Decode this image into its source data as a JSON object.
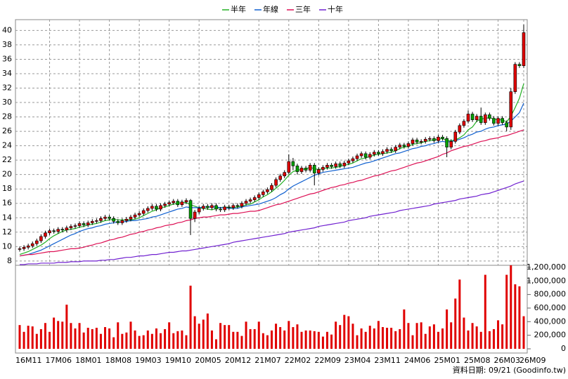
{
  "chart_data": {
    "type": "candlestick",
    "categories": [
      "16M11",
      null,
      null,
      null,
      null,
      null,
      null,
      "17M06",
      null,
      null,
      null,
      null,
      null,
      null,
      "18M01",
      null,
      null,
      null,
      null,
      null,
      null,
      "18M08",
      null,
      null,
      null,
      null,
      null,
      null,
      "19M03",
      null,
      null,
      null,
      null,
      null,
      null,
      "19M10",
      null,
      null,
      null,
      null,
      null,
      null,
      "20M05",
      null,
      null,
      null,
      null,
      null,
      null,
      "20M12",
      null,
      null,
      null,
      null,
      null,
      null,
      "21M07",
      null,
      null,
      null,
      null,
      null,
      null,
      "22M02",
      null,
      null,
      null,
      null,
      null,
      null,
      "22M09",
      null,
      null,
      null,
      null,
      null,
      null,
      "23M04",
      null,
      null,
      null,
      null,
      null,
      null,
      "23M11",
      null,
      null,
      null,
      null,
      null,
      null,
      "24M06",
      null,
      null,
      null,
      null,
      null,
      null,
      "25M01",
      null,
      null,
      null,
      null,
      null,
      null,
      "25M08",
      null,
      null,
      null,
      null,
      null,
      null,
      "26M03",
      null,
      null,
      null,
      null,
      null,
      "26M09"
    ],
    "open": [
      9.6,
      9.7,
      9.9,
      10.1,
      10.4,
      10.8,
      11.4,
      11.9,
      12.2,
      12.1,
      12.4,
      12.3,
      12.6,
      12.8,
      12.9,
      13.2,
      13.0,
      13.3,
      13.5,
      13.6,
      13.9,
      14.1,
      13.9,
      13.5,
      13.3,
      13.6,
      13.8,
      14.1,
      14.4,
      14.6,
      15.0,
      15.3,
      15.6,
      15.2,
      15.7,
      15.9,
      16.1,
      16.3,
      15.8,
      16.2,
      16.4,
      13.9,
      14.8,
      15.3,
      15.6,
      15.4,
      15.7,
      15.2,
      15.1,
      15.5,
      15.4,
      15.7,
      15.6,
      16.0,
      16.3,
      16.5,
      16.8,
      17.2,
      17.6,
      17.9,
      18.5,
      19.3,
      19.8,
      20.3,
      21.8,
      21.2,
      20.4,
      20.9,
      20.6,
      21.3,
      20.2,
      20.7,
      21.0,
      21.3,
      21.1,
      21.5,
      21.2,
      21.6,
      21.9,
      22.2,
      22.6,
      22.9,
      22.4,
      22.8,
      23.1,
      22.9,
      23.2,
      23.5,
      23.3,
      23.8,
      24.1,
      23.9,
      24.3,
      24.8,
      24.5,
      24.6,
      24.9,
      25.0,
      24.7,
      25.2,
      25.0,
      23.8,
      24.6,
      25.9,
      26.8,
      27.4,
      28.4,
      27.6,
      28.1,
      27.2,
      28.3,
      27.8,
      27.1,
      27.8,
      27.2,
      26.6,
      31.5,
      35.3,
      35.1
    ],
    "high": [
      10.0,
      10.2,
      10.4,
      10.7,
      11.1,
      11.7,
      12.2,
      12.5,
      12.5,
      12.7,
      12.7,
      12.9,
      13.1,
      13.2,
      13.5,
      13.5,
      13.6,
      13.8,
      13.9,
      14.2,
      14.4,
      14.4,
      14.2,
      13.8,
      13.9,
      14.1,
      14.4,
      14.7,
      14.9,
      15.3,
      15.6,
      15.9,
      15.9,
      16.0,
      16.2,
      16.4,
      16.6,
      16.6,
      16.5,
      16.7,
      16.6,
      15.1,
      15.6,
      15.9,
      15.9,
      16.0,
      16.0,
      15.5,
      15.8,
      15.8,
      16.0,
      16.0,
      16.3,
      16.6,
      16.8,
      17.1,
      17.5,
      17.9,
      18.2,
      18.8,
      19.6,
      20.1,
      20.6,
      22.8,
      22.3,
      21.5,
      21.2,
      21.2,
      21.6,
      21.6,
      21.0,
      21.3,
      21.6,
      21.6,
      21.8,
      21.8,
      21.9,
      22.2,
      22.5,
      22.9,
      23.2,
      23.2,
      23.1,
      23.4,
      23.4,
      23.5,
      23.8,
      23.8,
      24.1,
      24.4,
      24.4,
      24.6,
      25.1,
      25.1,
      24.9,
      25.2,
      25.3,
      25.3,
      25.5,
      25.5,
      25.3,
      24.9,
      26.2,
      27.1,
      27.7,
      28.9,
      28.7,
      28.4,
      29.3,
      28.6,
      28.6,
      28.1,
      28.1,
      28.1,
      27.5,
      32.0,
      35.6,
      35.6,
      40.8
    ],
    "low": [
      9.3,
      9.4,
      9.6,
      9.8,
      10.1,
      10.5,
      11.1,
      11.6,
      11.8,
      11.8,
      12.0,
      12.0,
      12.3,
      12.5,
      12.6,
      12.7,
      12.7,
      13.0,
      13.2,
      13.3,
      13.6,
      13.6,
      13.2,
      13.0,
      13.0,
      13.3,
      13.5,
      13.8,
      14.1,
      14.3,
      14.7,
      15.0,
      14.9,
      14.9,
      15.4,
      15.6,
      15.8,
      15.5,
      15.5,
      15.9,
      11.6,
      13.4,
      14.5,
      15.0,
      15.1,
      15.1,
      14.9,
      14.8,
      14.8,
      15.1,
      15.1,
      15.3,
      15.3,
      15.7,
      16.0,
      16.2,
      16.5,
      16.9,
      17.3,
      17.6,
      18.2,
      19.0,
      19.5,
      20.0,
      20.6,
      20.0,
      20.1,
      20.3,
      20.3,
      18.5,
      19.9,
      20.4,
      20.7,
      20.8,
      20.8,
      20.9,
      20.9,
      21.3,
      21.6,
      21.9,
      22.3,
      22.1,
      22.1,
      22.5,
      22.6,
      22.6,
      22.9,
      23.0,
      23.0,
      23.5,
      23.6,
      23.6,
      24.0,
      24.2,
      24.2,
      24.3,
      24.6,
      24.4,
      24.4,
      24.7,
      22.4,
      23.5,
      24.3,
      25.6,
      26.5,
      27.1,
      27.3,
      27.3,
      26.9,
      26.9,
      27.5,
      26.8,
      26.8,
      26.9,
      26.0,
      26.2,
      31.2,
      34.8,
      34.8
    ],
    "close": [
      9.7,
      9.9,
      10.1,
      10.4,
      10.8,
      11.4,
      11.9,
      12.2,
      12.1,
      12.4,
      12.3,
      12.6,
      12.8,
      12.9,
      13.2,
      13.0,
      13.3,
      13.5,
      13.6,
      13.9,
      14.1,
      13.9,
      13.5,
      13.3,
      13.6,
      13.8,
      14.1,
      14.4,
      14.6,
      15.0,
      15.3,
      15.6,
      15.2,
      15.7,
      15.9,
      16.1,
      16.3,
      15.8,
      16.2,
      16.4,
      13.9,
      14.8,
      15.3,
      15.6,
      15.4,
      15.7,
      15.2,
      15.1,
      15.5,
      15.4,
      15.7,
      15.6,
      16.0,
      16.3,
      16.5,
      16.8,
      17.2,
      17.6,
      17.9,
      18.5,
      19.3,
      19.8,
      20.3,
      21.8,
      21.2,
      20.4,
      20.9,
      20.6,
      21.3,
      20.2,
      20.7,
      21.0,
      21.3,
      21.1,
      21.5,
      21.2,
      21.6,
      21.9,
      22.2,
      22.6,
      22.9,
      22.4,
      22.8,
      23.1,
      22.9,
      23.2,
      23.5,
      23.3,
      23.8,
      24.1,
      23.9,
      24.3,
      24.8,
      24.5,
      24.6,
      24.9,
      25.0,
      24.7,
      25.2,
      25.0,
      23.8,
      24.6,
      25.9,
      26.8,
      27.4,
      28.4,
      27.6,
      28.1,
      27.2,
      28.3,
      27.8,
      27.1,
      27.8,
      27.2,
      26.6,
      31.5,
      35.3,
      35.1,
      39.7
    ],
    "up_color": "#e00000",
    "down_color": "#00a000",
    "series": [
      {
        "name": "半年",
        "color": "#22b022",
        "values": [
          8.9,
          9.1,
          9.3,
          9.6,
          9.9,
          10.2,
          10.6,
          11.1,
          11.5,
          11.8,
          12.1,
          12.3,
          12.4,
          12.5,
          12.7,
          12.8,
          13.0,
          13.1,
          13.2,
          13.4,
          13.6,
          13.7,
          13.8,
          13.7,
          13.7,
          13.7,
          13.7,
          13.8,
          14.0,
          14.3,
          14.6,
          14.9,
          15.1,
          15.4,
          15.5,
          15.7,
          15.9,
          16.0,
          16.1,
          16.1,
          15.8,
          15.6,
          15.4,
          15.3,
          15.2,
          15.1,
          15.3,
          15.4,
          15.5,
          15.4,
          15.4,
          15.5,
          15.6,
          15.8,
          15.9,
          16.2,
          16.5,
          16.9,
          17.2,
          17.6,
          18.1,
          18.6,
          19.2,
          19.9,
          20.4,
          20.6,
          20.7,
          20.8,
          21.0,
          20.8,
          20.7,
          20.8,
          20.9,
          20.9,
          21.0,
          21.1,
          21.3,
          21.4,
          21.6,
          21.9,
          22.2,
          22.3,
          22.5,
          22.7,
          22.8,
          22.9,
          23.0,
          23.1,
          23.3,
          23.6,
          23.8,
          23.9,
          24.2,
          24.3,
          24.4,
          24.6,
          24.7,
          24.8,
          24.9,
          25.0,
          24.7,
          24.7,
          24.8,
          25.1,
          25.5,
          26.2,
          26.6,
          27.4,
          27.7,
          27.8,
          27.9,
          27.7,
          27.6,
          27.6,
          27.3,
          28.1,
          29.3,
          30.6,
          32.6
        ]
      },
      {
        "name": "年線",
        "color": "#1060d0",
        "values": [
          8.7,
          8.8,
          8.9,
          9.1,
          9.3,
          9.5,
          9.8,
          10.1,
          10.4,
          10.7,
          11.0,
          11.3,
          11.6,
          11.8,
          12.1,
          12.3,
          12.5,
          12.6,
          12.8,
          12.9,
          13.1,
          13.2,
          13.3,
          13.4,
          13.4,
          13.5,
          13.6,
          13.6,
          13.7,
          13.8,
          13.9,
          14.1,
          14.2,
          14.4,
          14.6,
          14.8,
          15.0,
          15.2,
          15.3,
          15.5,
          15.4,
          15.4,
          15.4,
          15.5,
          15.5,
          15.5,
          15.5,
          15.4,
          15.4,
          15.3,
          15.3,
          15.3,
          15.5,
          15.6,
          15.7,
          15.8,
          15.9,
          16.1,
          16.3,
          16.5,
          16.8,
          17.2,
          17.5,
          18.0,
          18.4,
          18.7,
          19.0,
          19.3,
          19.6,
          19.9,
          20.1,
          20.3,
          20.4,
          20.5,
          20.6,
          20.7,
          20.8,
          20.9,
          21.0,
          21.2,
          21.4,
          21.6,
          21.7,
          21.9,
          22.1,
          22.3,
          22.5,
          22.7,
          22.9,
          23.0,
          23.2,
          23.4,
          23.6,
          23.7,
          23.9,
          24.0,
          24.2,
          24.3,
          24.5,
          24.6,
          24.5,
          24.6,
          24.7,
          24.9,
          25.1,
          25.4,
          25.6,
          25.9,
          26.0,
          26.3,
          26.5,
          26.6,
          26.8,
          26.9,
          27.0,
          27.4,
          28.0,
          28.6,
          29.9
        ]
      },
      {
        "name": "三年",
        "color": "#dd1155",
        "values": [
          8.7,
          8.8,
          8.9,
          8.9,
          9.0,
          9.1,
          9.2,
          9.3,
          9.3,
          9.4,
          9.5,
          9.6,
          9.7,
          9.7,
          9.8,
          9.9,
          10.1,
          10.2,
          10.4,
          10.5,
          10.7,
          10.9,
          11.0,
          11.2,
          11.3,
          11.5,
          11.7,
          11.8,
          12.0,
          12.1,
          12.3,
          12.4,
          12.6,
          12.7,
          12.9,
          13.0,
          13.1,
          13.3,
          13.4,
          13.6,
          13.7,
          13.9,
          14.0,
          14.1,
          14.1,
          14.2,
          14.3,
          14.4,
          14.4,
          14.5,
          14.6,
          14.6,
          14.7,
          14.8,
          14.9,
          14.9,
          15.0,
          15.2,
          15.4,
          15.6,
          15.8,
          15.9,
          16.1,
          16.3,
          16.5,
          16.7,
          16.9,
          17.1,
          17.3,
          17.4,
          17.6,
          17.8,
          18.0,
          18.2,
          18.3,
          18.5,
          18.6,
          18.8,
          18.9,
          19.1,
          19.2,
          19.4,
          19.6,
          19.8,
          19.9,
          20.1,
          20.3,
          20.5,
          20.6,
          20.8,
          21.0,
          21.2,
          21.4,
          21.6,
          21.7,
          21.9,
          22.1,
          22.3,
          22.5,
          22.8,
          23.0,
          23.3,
          23.5,
          23.7,
          23.9,
          24.0,
          24.2,
          24.4,
          24.6,
          24.7,
          24.9,
          25.0,
          25.1,
          25.3,
          25.4,
          25.6,
          25.8,
          26.0,
          26.2
        ]
      },
      {
        "name": "十年",
        "color": "#7020d0",
        "values": [
          7.5,
          7.5,
          7.6,
          7.6,
          7.6,
          7.7,
          7.7,
          7.7,
          7.7,
          7.8,
          7.8,
          7.8,
          7.9,
          7.9,
          7.9,
          8.0,
          8.0,
          8.0,
          8.0,
          8.1,
          8.1,
          8.2,
          8.2,
          8.3,
          8.4,
          8.5,
          8.5,
          8.6,
          8.7,
          8.7,
          8.8,
          8.9,
          8.9,
          9.0,
          9.1,
          9.2,
          9.2,
          9.3,
          9.4,
          9.4,
          9.5,
          9.6,
          9.7,
          9.8,
          9.9,
          10.0,
          10.1,
          10.2,
          10.3,
          10.4,
          10.6,
          10.7,
          10.8,
          10.9,
          11.0,
          11.1,
          11.2,
          11.3,
          11.4,
          11.5,
          11.6,
          11.7,
          11.8,
          12.0,
          12.1,
          12.2,
          12.3,
          12.4,
          12.5,
          12.6,
          12.8,
          12.9,
          13.0,
          13.1,
          13.2,
          13.3,
          13.4,
          13.6,
          13.7,
          13.8,
          13.9,
          14.0,
          14.2,
          14.3,
          14.4,
          14.5,
          14.6,
          14.7,
          14.8,
          15.0,
          15.1,
          15.2,
          15.3,
          15.4,
          15.5,
          15.6,
          15.7,
          15.9,
          16.0,
          16.1,
          16.2,
          16.3,
          16.4,
          16.6,
          16.7,
          16.8,
          16.9,
          17.0,
          17.2,
          17.3,
          17.4,
          17.6,
          17.8,
          18.0,
          18.2,
          18.4,
          18.7,
          18.9,
          19.1
        ]
      }
    ],
    "ylim": [
      7.4,
      41.5
    ],
    "yticks": [
      8,
      10,
      12,
      14,
      16,
      18,
      20,
      22,
      24,
      26,
      28,
      30,
      32,
      34,
      36,
      38,
      40
    ],
    "grid": true,
    "volume": {
      "color": "#e00000",
      "values": [
        350000,
        250000,
        340000,
        330000,
        220000,
        290000,
        380000,
        250000,
        460000,
        410000,
        400000,
        650000,
        380000,
        300000,
        380000,
        240000,
        310000,
        290000,
        310000,
        220000,
        320000,
        300000,
        170000,
        390000,
        220000,
        240000,
        400000,
        270000,
        190000,
        200000,
        270000,
        220000,
        300000,
        230000,
        290000,
        390000,
        230000,
        260000,
        270000,
        200000,
        930000,
        480000,
        370000,
        430000,
        520000,
        270000,
        140000,
        380000,
        350000,
        350000,
        250000,
        250000,
        190000,
        400000,
        290000,
        290000,
        400000,
        230000,
        200000,
        270000,
        370000,
        320000,
        270000,
        410000,
        320000,
        360000,
        250000,
        270000,
        270000,
        260000,
        250000,
        180000,
        250000,
        210000,
        400000,
        350000,
        500000,
        480000,
        370000,
        200000,
        300000,
        250000,
        340000,
        300000,
        410000,
        320000,
        310000,
        310000,
        260000,
        290000,
        580000,
        380000,
        200000,
        380000,
        390000,
        220000,
        330000,
        360000,
        250000,
        300000,
        580000,
        390000,
        740000,
        1020000,
        460000,
        270000,
        380000,
        330000,
        250000,
        1090000,
        260000,
        290000,
        420000,
        360000,
        1090000,
        1230000,
        950000,
        920000,
        480000
      ],
      "ylim": [
        0,
        1230000
      ],
      "yticks": [
        0,
        {
          "value": 200000,
          "label": "200,000"
        },
        {
          "value": 400000,
          "label": "400,000"
        },
        {
          "value": 600000,
          "label": "600,000"
        },
        {
          "value": 800000,
          "label": "800,000"
        },
        {
          "value": 1000000,
          "label": "1,000,000"
        },
        {
          "value": 1200000,
          "label": "1,200,000"
        }
      ]
    },
    "footer": "資料日期: 09/21 (Goodinfo.tw)"
  }
}
